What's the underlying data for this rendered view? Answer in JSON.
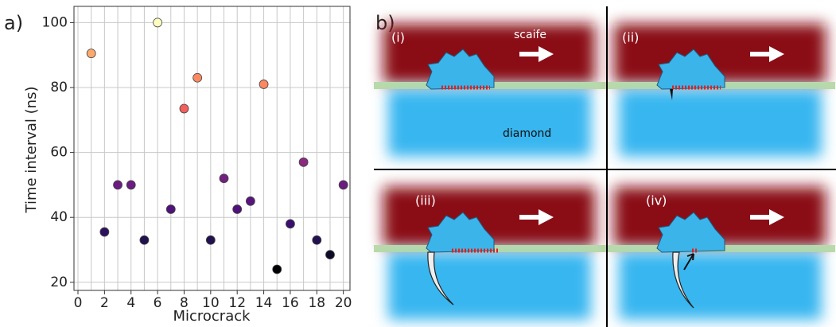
{
  "chart_data": {
    "type": "scatter",
    "panel_label": "a)",
    "xlabel": "Microcrack",
    "ylabel": "Time interval (ns)",
    "x": [
      1,
      2,
      3,
      4,
      5,
      6,
      7,
      8,
      9,
      10,
      11,
      12,
      13,
      14,
      15,
      16,
      17,
      18,
      19,
      20
    ],
    "values": [
      90.5,
      35.5,
      50,
      50,
      33,
      100,
      42.5,
      73.5,
      83,
      33,
      52,
      42.5,
      45,
      81,
      24,
      38,
      57,
      33,
      28.5,
      50
    ],
    "colors": [
      "#fca96d",
      "#2c115f",
      "#6a1c81",
      "#6a1c81",
      "#221150",
      "#fcfdbf",
      "#4f127b",
      "#f1605d",
      "#fc8961",
      "#221150",
      "#71207f",
      "#4f127b",
      "#59157e",
      "#fb8861",
      "#000004",
      "#3b0f70",
      "#8c2981",
      "#221150",
      "#0e0b2a",
      "#6a1c81"
    ],
    "xlim": [
      -0.3,
      20.5
    ],
    "ylim": [
      17.5,
      105
    ],
    "xticks": [
      0,
      2,
      4,
      6,
      8,
      10,
      12,
      14,
      16,
      18,
      20
    ],
    "xminorticks": [
      1,
      3,
      5,
      7,
      9,
      11,
      13,
      15,
      17,
      19
    ],
    "yticks": [
      20,
      40,
      60,
      80,
      100
    ],
    "grid": true
  },
  "diagram": {
    "panel_label": "b)",
    "panels": [
      {
        "label": "(i)",
        "top_label": "scaife",
        "bottom_label": "diamond"
      },
      {
        "label": "(ii)"
      },
      {
        "label": "(iii)"
      },
      {
        "label": "(iv)"
      }
    ]
  }
}
